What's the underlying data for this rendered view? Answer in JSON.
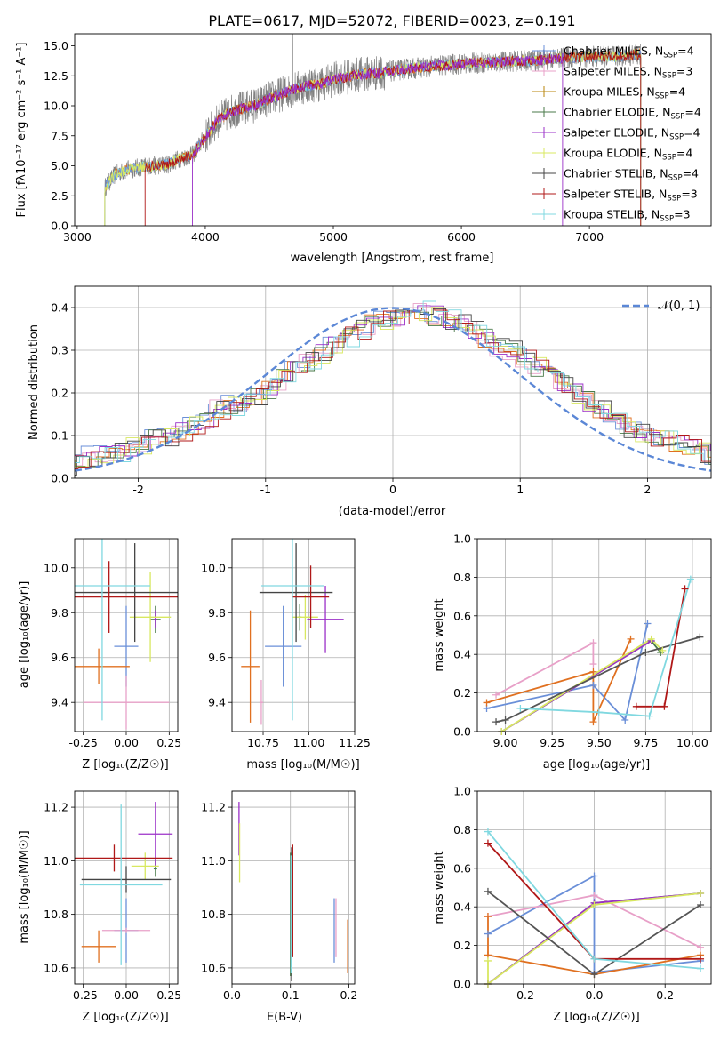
{
  "figure": {
    "title": "PLATE=0617, MJD=52072, FIBERID=0023, z=0.191"
  },
  "chart_data": [
    {
      "id": "spectrum",
      "type": "line",
      "title": "PLATE=0617, MJD=52072, FIBERID=0023, z=0.191",
      "xlabel": "wavelength [Angstrom, rest frame]",
      "ylabel": "Flux [f",
      "ylabel_full": "Flux [fλ10⁻¹⁷ erg cm⁻² s⁻¹ A⁻¹]",
      "xlim": [
        2980,
        7950
      ],
      "ylim": [
        0,
        16
      ],
      "xticks": [
        3000,
        4000,
        5000,
        6000,
        7000
      ],
      "yticks": [
        0.0,
        2.5,
        5.0,
        7.5,
        10.0,
        12.5,
        15.0
      ],
      "legend_position": "right",
      "legend": [
        {
          "name": "Chabrier MILES, N",
          "sub": "SSP",
          "tail": "=4",
          "color": "#6a8fd8"
        },
        {
          "name": "Salpeter MILES, N",
          "sub": "SSP",
          "tail": "=3",
          "color": "#e8a0c8"
        },
        {
          "name": "Kroupa MILES, N",
          "sub": "SSP",
          "tail": "=4",
          "color": "#b8860b"
        },
        {
          "name": "Chabrier ELODIE, N",
          "sub": "SSP",
          "tail": "=4",
          "color": "#4a7a4a"
        },
        {
          "name": "Salpeter ELODIE, N",
          "sub": "SSP",
          "tail": "=4",
          "color": "#9b30c8"
        },
        {
          "name": "Kroupa ELODIE, N",
          "sub": "SSP",
          "tail": "=4",
          "color": "#d8e860"
        },
        {
          "name": "Chabrier STELIB, N",
          "sub": "SSP",
          "tail": "=4",
          "color": "#444444"
        },
        {
          "name": "Salpeter STELIB, N",
          "sub": "SSP",
          "tail": "=3",
          "color": "#b01818"
        },
        {
          "name": "Kroupa STELIB, N",
          "sub": "SSP",
          "tail": "=3",
          "color": "#80d8e0"
        }
      ],
      "data_color": "#808080",
      "model_colors": [
        "#e07020",
        "#80d8e0",
        "#6a8fd8",
        "#d8e860",
        "#b01818",
        "#9b30c8"
      ],
      "continuum_points": [
        [
          3215,
          3.2
        ],
        [
          3300,
          4.3
        ],
        [
          3400,
          4.7
        ],
        [
          3500,
          4.9
        ],
        [
          3600,
          5.0
        ],
        [
          3700,
          5.1
        ],
        [
          3800,
          5.6
        ],
        [
          3900,
          5.9
        ],
        [
          4000,
          7.4
        ],
        [
          4100,
          8.8
        ],
        [
          4200,
          9.5
        ],
        [
          4300,
          9.8
        ],
        [
          4400,
          10.1
        ],
        [
          4500,
          10.6
        ],
        [
          4600,
          11.0
        ],
        [
          4700,
          11.4
        ],
        [
          4800,
          11.7
        ],
        [
          4900,
          11.8
        ],
        [
          5000,
          12.2
        ],
        [
          5200,
          12.6
        ],
        [
          5400,
          12.8
        ],
        [
          5600,
          13.1
        ],
        [
          5800,
          13.3
        ],
        [
          6000,
          13.5
        ],
        [
          6200,
          13.6
        ],
        [
          6400,
          13.7
        ],
        [
          6600,
          13.8
        ],
        [
          6800,
          14.0
        ],
        [
          7000,
          14.1
        ],
        [
          7200,
          14.1
        ],
        [
          7400,
          14.3
        ]
      ],
      "model_ranges": [
        [
          3215,
          7400
        ],
        [
          3215,
          7400
        ],
        [
          3215,
          7400
        ],
        [
          3215,
          7400
        ],
        [
          3530,
          7400
        ],
        [
          3900,
          6790
        ]
      ]
    },
    {
      "id": "residuals",
      "type": "histogram",
      "xlabel": "(data-model)/error",
      "ylabel": "Normed distribution",
      "xlim": [
        -2.5,
        2.5
      ],
      "ylim": [
        0,
        0.45
      ],
      "xticks": [
        -2,
        -1,
        0,
        1,
        2
      ],
      "yticks": [
        0.0,
        0.1,
        0.2,
        0.3,
        0.4
      ],
      "legend_label": "𝒩(0, 1)",
      "legend_color": "#5b87d6",
      "legend_position": "upper right",
      "bin_width": 0.1,
      "colors": [
        "#6a8fd8",
        "#e8a0c8",
        "#e07020",
        "#4a7a4a",
        "#9b30c8",
        "#d8e860",
        "#444444",
        "#b01818",
        "#80d8e0"
      ],
      "base_bins": [
        0.03,
        0.03,
        0.03,
        0.05,
        0.05,
        0.06,
        0.06,
        0.07,
        0.08,
        0.09,
        0.1,
        0.11,
        0.12,
        0.14,
        0.16,
        0.17,
        0.18,
        0.19,
        0.21,
        0.23,
        0.25,
        0.27,
        0.29,
        0.31,
        0.33,
        0.35,
        0.36,
        0.37,
        0.38,
        0.39,
        0.39,
        0.38,
        0.37,
        0.36,
        0.35,
        0.33,
        0.31,
        0.3,
        0.28,
        0.26,
        0.24,
        0.22,
        0.2,
        0.18,
        0.16,
        0.14,
        0.12,
        0.11,
        0.1,
        0.09,
        0.08,
        0.07,
        0.06,
        0.05,
        0.04,
        0.04,
        0.03
      ]
    },
    {
      "id": "age-vs-z",
      "type": "errorbar",
      "xlabel": "Z [log",
      "xlabel_full": "Z [log₁₀(Z/Z☉)]",
      "ylabel": "age  [log",
      "ylabel_full": "age  [log₁₀(age/yr)]",
      "xlim": [
        -0.3,
        0.3
      ],
      "ylim": [
        9.27,
        10.13
      ],
      "xticks": [
        -0.25,
        0.0,
        0.25
      ],
      "yticks": [
        9.4,
        9.6,
        9.8,
        10.0
      ],
      "points": [
        {
          "x": 0.0,
          "y": 9.65,
          "xerr": 0.07,
          "yerr": 0.18,
          "color": "#6a8fd8"
        },
        {
          "x": 0.0,
          "y": 9.4,
          "xerr": 0.25,
          "yerr": 0.12,
          "color": "#e8a0c8"
        },
        {
          "x": -0.16,
          "y": 9.56,
          "xerr": 0.18,
          "yerr": 0.08,
          "color": "#e07020"
        },
        {
          "x": 0.17,
          "y": 9.77,
          "xerr": 0.03,
          "yerr": 0.06,
          "color": "#4a7a4a"
        },
        {
          "x": 0.17,
          "y": 9.77,
          "xerr": 0.01,
          "yerr": 0.04,
          "color": "#9b30c8"
        },
        {
          "x": 0.14,
          "y": 9.78,
          "xerr": 0.12,
          "yerr": 0.2,
          "color": "#d8e860"
        },
        {
          "x": 0.05,
          "y": 9.89,
          "xerr": 0.35,
          "yerr": 0.22,
          "color": "#444444"
        },
        {
          "x": -0.1,
          "y": 9.87,
          "xerr": 0.4,
          "yerr": 0.16,
          "color": "#b01818"
        },
        {
          "x": -0.14,
          "y": 9.92,
          "xerr": 0.28,
          "yerr": 0.6,
          "color": "#80d8e0"
        }
      ]
    },
    {
      "id": "age-vs-mass",
      "type": "errorbar",
      "xlabel": "mass [log",
      "xlabel_full": "mass [log₁₀(M/M☉)]",
      "ylabel": "",
      "xlim": [
        10.58,
        11.25
      ],
      "ylim": [
        9.27,
        10.13
      ],
      "xticks": [
        10.75,
        11.0,
        11.25
      ],
      "yticks": [
        9.4,
        9.6,
        9.8,
        10.0
      ],
      "points": [
        {
          "x": 10.86,
          "y": 9.65,
          "xerr": 0.1,
          "yerr": 0.18,
          "color": "#6a8fd8"
        },
        {
          "x": 10.74,
          "y": 9.4,
          "xerr": 0.01,
          "yerr": 0.1,
          "color": "#e8a0c8"
        },
        {
          "x": 10.68,
          "y": 9.56,
          "xerr": 0.05,
          "yerr": 0.25,
          "color": "#e07020"
        },
        {
          "x": 10.95,
          "y": 9.78,
          "xerr": 0.01,
          "yerr": 0.06,
          "color": "#4a7a4a"
        },
        {
          "x": 11.09,
          "y": 9.77,
          "xerr": 0.1,
          "yerr": 0.15,
          "color": "#9b30c8"
        },
        {
          "x": 10.98,
          "y": 9.78,
          "xerr": 0.07,
          "yerr": 0.1,
          "color": "#d8e860"
        },
        {
          "x": 10.93,
          "y": 9.89,
          "xerr": 0.2,
          "yerr": 0.22,
          "color": "#444444"
        },
        {
          "x": 11.01,
          "y": 9.87,
          "xerr": 0.1,
          "yerr": 0.14,
          "color": "#b01818"
        },
        {
          "x": 10.91,
          "y": 9.92,
          "xerr": 0.17,
          "yerr": 0.6,
          "color": "#80d8e0"
        }
      ]
    },
    {
      "id": "weight-vs-age",
      "type": "line",
      "xlabel": "age  [log",
      "xlabel_full": "age  [log₁₀(age/yr)]",
      "ylabel": "mass weight",
      "xlim": [
        8.85,
        10.1
      ],
      "ylim": [
        0,
        1
      ],
      "xticks": [
        9.0,
        9.25,
        9.5,
        9.75,
        10.0
      ],
      "yticks": [
        0.0,
        0.2,
        0.4,
        0.6,
        0.8,
        1.0
      ],
      "series": [
        {
          "color": "#6a8fd8",
          "points": [
            [
              8.9,
              0.12
            ],
            [
              9.47,
              0.24
            ],
            [
              9.64,
              0.06
            ],
            [
              9.76,
              0.56
            ]
          ]
        },
        {
          "color": "#e8a0c8",
          "points": [
            [
              8.95,
              0.19
            ],
            [
              9.47,
              0.46
            ],
            [
              9.47,
              0.35
            ]
          ]
        },
        {
          "color": "#e07020",
          "points": [
            [
              8.9,
              0.15
            ],
            [
              9.47,
              0.31
            ],
            [
              9.47,
              0.05
            ],
            [
              9.67,
              0.48
            ]
          ]
        },
        {
          "color": "#4a7a4a",
          "points": [
            [
              8.98,
              0.0
            ],
            [
              9.78,
              0.47
            ],
            [
              9.83,
              0.41
            ]
          ]
        },
        {
          "color": "#9b30c8",
          "points": [
            [
              8.98,
              0.0
            ],
            [
              9.78,
              0.47
            ]
          ]
        },
        {
          "color": "#d8e860",
          "points": [
            [
              8.98,
              0.0
            ],
            [
              9.78,
              0.48
            ],
            [
              9.84,
              0.42
            ]
          ]
        },
        {
          "color": "#555555",
          "points": [
            [
              8.95,
              0.05
            ],
            [
              9.0,
              0.06
            ],
            [
              9.75,
              0.41
            ],
            [
              10.04,
              0.49
            ]
          ]
        },
        {
          "color": "#b01818",
          "points": [
            [
              9.7,
              0.13
            ],
            [
              9.85,
              0.13
            ],
            [
              9.96,
              0.74
            ]
          ]
        },
        {
          "color": "#80d8e0",
          "points": [
            [
              9.08,
              0.12
            ],
            [
              9.5,
              0.1
            ],
            [
              9.77,
              0.08
            ],
            [
              9.99,
              0.79
            ]
          ]
        }
      ]
    },
    {
      "id": "mass-vs-z",
      "type": "errorbar",
      "xlabel": "Z [log",
      "xlabel_full": "Z [log₁₀(Z/Z☉)]",
      "ylabel": "mass [log",
      "ylabel_full": "mass [log₁₀(M/M☉)]",
      "xlim": [
        -0.3,
        0.3
      ],
      "ylim": [
        10.54,
        11.26
      ],
      "xticks": [
        -0.25,
        0.0,
        0.25
      ],
      "yticks": [
        10.6,
        10.8,
        11.0,
        11.2
      ],
      "points": [
        {
          "x": 0.0,
          "y": 10.74,
          "xerr": 0.07,
          "yerr": 0.12,
          "color": "#6a8fd8"
        },
        {
          "x": 0.0,
          "y": 10.74,
          "xerr": 0.14,
          "yerr": 0.01,
          "color": "#e8a0c8"
        },
        {
          "x": -0.16,
          "y": 10.68,
          "xerr": 0.1,
          "yerr": 0.06,
          "color": "#e07020"
        },
        {
          "x": 0.17,
          "y": 10.97,
          "xerr": 0.01,
          "yerr": 0.03,
          "color": "#4a7a4a"
        },
        {
          "x": 0.17,
          "y": 11.1,
          "xerr": 0.1,
          "yerr": 0.12,
          "color": "#9b30c8"
        },
        {
          "x": 0.11,
          "y": 10.98,
          "xerr": 0.08,
          "yerr": 0.05,
          "color": "#d8e860"
        },
        {
          "x": 0.0,
          "y": 10.93,
          "xerr": 0.26,
          "yerr": 0.05,
          "color": "#444444"
        },
        {
          "x": -0.07,
          "y": 11.01,
          "xerr": 0.34,
          "yerr": 0.05,
          "color": "#b01818"
        },
        {
          "x": -0.03,
          "y": 10.91,
          "xerr": 0.24,
          "yerr": 0.3,
          "color": "#80d8e0"
        }
      ]
    },
    {
      "id": "mass-vs-ebv",
      "type": "errorbar",
      "xlabel": "E(B-V)",
      "ylabel": "",
      "xlim": [
        0.0,
        0.21
      ],
      "ylim": [
        10.54,
        11.26
      ],
      "xticks": [
        0.0,
        0.1,
        0.2
      ],
      "yticks": [
        10.6,
        10.8,
        11.0,
        11.2
      ],
      "points": [
        {
          "x": 0.175,
          "y": 10.74,
          "xerr": 0.0,
          "yerr": 0.12,
          "color": "#6a8fd8"
        },
        {
          "x": 0.178,
          "y": 10.75,
          "xerr": 0.0,
          "yerr": 0.11,
          "color": "#e8a0c8"
        },
        {
          "x": 0.198,
          "y": 10.68,
          "xerr": 0.0,
          "yerr": 0.1,
          "color": "#e07020"
        },
        {
          "x": 0.1,
          "y": 10.8,
          "xerr": 0.0,
          "yerr": 0.23,
          "color": "#4a7a4a"
        },
        {
          "x": 0.012,
          "y": 11.12,
          "xerr": 0.0,
          "yerr": 0.1,
          "color": "#9b30c8"
        },
        {
          "x": 0.013,
          "y": 11.03,
          "xerr": 0.0,
          "yerr": 0.11,
          "color": "#d8e860"
        },
        {
          "x": 0.102,
          "y": 10.8,
          "xerr": 0.0,
          "yerr": 0.25,
          "color": "#444444"
        },
        {
          "x": 0.104,
          "y": 10.85,
          "xerr": 0.0,
          "yerr": 0.21,
          "color": "#b01818"
        },
        {
          "x": 0.101,
          "y": 10.8,
          "xerr": 0.0,
          "yerr": 0.22,
          "color": "#80d8e0"
        }
      ]
    },
    {
      "id": "weight-vs-z",
      "type": "line",
      "xlabel": "Z [log",
      "xlabel_full": "Z [log₁₀(Z/Z☉)]",
      "ylabel": "mass weight",
      "xlim": [
        -0.33,
        0.33
      ],
      "ylim": [
        0,
        1
      ],
      "xticks": [
        -0.2,
        0.0,
        0.2
      ],
      "yticks": [
        0.0,
        0.2,
        0.4,
        0.6,
        0.8,
        1.0
      ],
      "series": [
        {
          "color": "#6a8fd8",
          "points": [
            [
              -0.3,
              0.26
            ],
            [
              0.0,
              0.56
            ],
            [
              0.0,
              0.06
            ],
            [
              0.3,
              0.12
            ]
          ]
        },
        {
          "color": "#e8a0c8",
          "points": [
            [
              -0.3,
              0.35
            ],
            [
              0.0,
              0.46
            ],
            [
              0.3,
              0.19
            ]
          ]
        },
        {
          "color": "#e07020",
          "points": [
            [
              -0.3,
              0.35
            ],
            [
              -0.3,
              0.15
            ],
            [
              0.0,
              0.05
            ],
            [
              0.3,
              0.15
            ]
          ]
        },
        {
          "color": "#4a7a4a",
          "points": [
            [
              -0.3,
              0.0
            ],
            [
              0.0,
              0.42
            ],
            [
              0.3,
              0.47
            ]
          ]
        },
        {
          "color": "#9b30c8",
          "points": [
            [
              -0.3,
              0.0
            ],
            [
              0.0,
              0.42
            ],
            [
              0.3,
              0.47
            ]
          ]
        },
        {
          "color": "#d8e860",
          "points": [
            [
              -0.3,
              0.12
            ],
            [
              -0.3,
              0.0
            ],
            [
              0.0,
              0.41
            ],
            [
              0.3,
              0.47
            ]
          ]
        },
        {
          "color": "#555555",
          "points": [
            [
              -0.3,
              0.48
            ],
            [
              0.0,
              0.05
            ],
            [
              0.3,
              0.41
            ]
          ]
        },
        {
          "color": "#b01818",
          "points": [
            [
              -0.3,
              0.73
            ],
            [
              0.0,
              0.13
            ],
            [
              0.3,
              0.13
            ]
          ]
        },
        {
          "color": "#80d8e0",
          "points": [
            [
              -0.3,
              0.79
            ],
            [
              0.0,
              0.13
            ],
            [
              0.3,
              0.08
            ]
          ]
        }
      ]
    }
  ]
}
